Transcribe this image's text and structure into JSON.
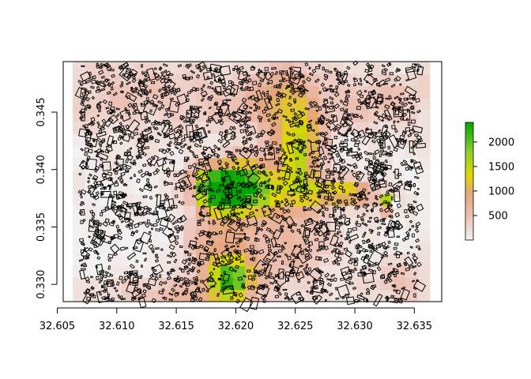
{
  "chart_data": {
    "type": "heatmap",
    "title": "",
    "xlabel": "",
    "ylabel": "",
    "xlim": [
      32.6055,
      32.6373
    ],
    "ylim": [
      0.3285,
      0.3494
    ],
    "x_ticks": [
      "32.605",
      "32.610",
      "32.615",
      "32.620",
      "32.625",
      "32.630",
      "32.635"
    ],
    "x_tick_values": [
      32.605,
      32.61,
      32.615,
      32.62,
      32.625,
      32.63,
      32.635
    ],
    "y_ticks": [
      "0.330",
      "0.335",
      "0.340",
      "0.345"
    ],
    "y_tick_values": [
      0.33,
      0.335,
      0.34,
      0.345
    ],
    "legend": {
      "position": "right",
      "min": 0,
      "max": 2400,
      "ticks": [
        "500",
        "1000",
        "1500",
        "2000"
      ],
      "tick_values": [
        500,
        1000,
        1500,
        2000
      ]
    },
    "raster": {
      "x_start": 32.6063,
      "x_end": 32.6363,
      "y_start": 0.3285,
      "y_end": 0.3494,
      "cols": 29,
      "rows": 20,
      "background": 60,
      "hotspots": [
        {
          "x": 32.6187,
          "y": 0.3384,
          "value": 2200,
          "sx": 0.0018,
          "sy": 0.0013
        },
        {
          "x": 32.6214,
          "y": 0.3385,
          "value": 1500,
          "sx": 0.0022,
          "sy": 0.0016
        },
        {
          "x": 32.6255,
          "y": 0.341,
          "value": 1250,
          "sx": 0.0012,
          "sy": 0.0028
        },
        {
          "x": 32.624,
          "y": 0.3455,
          "value": 700,
          "sx": 0.0018,
          "sy": 0.0028
        },
        {
          "x": 32.629,
          "y": 0.338,
          "value": 1300,
          "sx": 0.002,
          "sy": 0.0008
        },
        {
          "x": 32.6325,
          "y": 0.337,
          "value": 2350,
          "sx": 0.0004,
          "sy": 0.0004
        },
        {
          "x": 32.6197,
          "y": 0.3305,
          "value": 1600,
          "sx": 0.0012,
          "sy": 0.0013
        },
        {
          "x": 32.6185,
          "y": 0.333,
          "value": 700,
          "sx": 0.0018,
          "sy": 0.003
        },
        {
          "x": 32.62,
          "y": 0.346,
          "value": 350,
          "sx": 0.005,
          "sy": 0.002
        },
        {
          "x": 32.632,
          "y": 0.346,
          "value": 380,
          "sx": 0.004,
          "sy": 0.002
        },
        {
          "x": 32.624,
          "y": 0.3335,
          "value": 520,
          "sx": 0.003,
          "sy": 0.003
        },
        {
          "x": 32.615,
          "y": 0.329,
          "value": 500,
          "sx": 0.004,
          "sy": 0.0012
        },
        {
          "x": 32.634,
          "y": 0.33,
          "value": 380,
          "sx": 0.002,
          "sy": 0.0015
        },
        {
          "x": 32.61,
          "y": 0.347,
          "value": 300,
          "sx": 0.004,
          "sy": 0.003
        }
      ]
    },
    "buildings_layer": "building outlines (black polygons)"
  }
}
